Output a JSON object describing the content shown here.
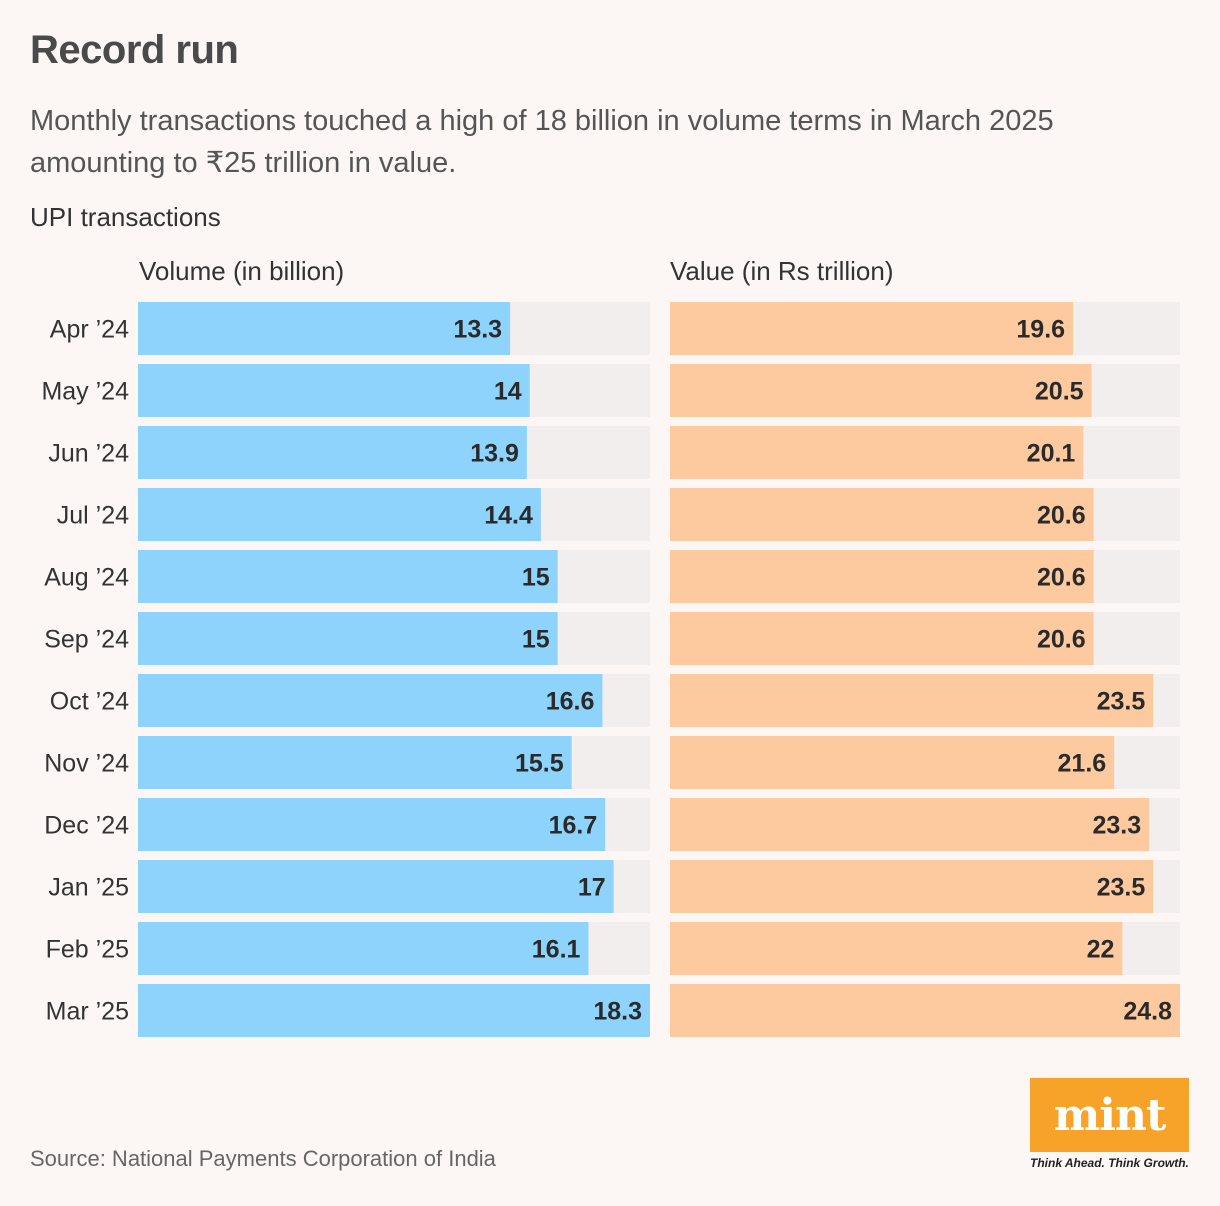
{
  "header": {
    "title": "Record run",
    "subtitle": "Monthly transactions touched a high of 18 billion in volume terms in March 2025 amounting to ₹25 trillion in value.",
    "chart_label": "UPI transactions"
  },
  "footer": {
    "source": "Source: National Payments Corporation of India",
    "logo_text": "mint",
    "tagline": "Think Ahead. Think Growth."
  },
  "colors": {
    "volume_bar": "#8dd3fc",
    "value_bar": "#fdcaa0",
    "track": "#f3eeee",
    "logo": "#f7a228"
  },
  "chart_data": {
    "type": "bar",
    "orientation": "horizontal",
    "title": "UPI transactions",
    "categories": [
      "Apr ’24",
      "May ’24",
      "Jun ’24",
      "Jul ’24",
      "Aug ’24",
      "Sep ’24",
      "Oct ’24",
      "Nov ’24",
      "Dec ’24",
      "Jan ’25",
      "Feb ’25",
      "Mar ’25"
    ],
    "series": [
      {
        "name": "Volume (in billion)",
        "values": [
          13.3,
          14,
          13.9,
          14.4,
          15,
          15,
          16.6,
          15.5,
          16.7,
          17,
          16.1,
          18.3
        ],
        "max": 18.3
      },
      {
        "name": "Value (in Rs trillion)",
        "values": [
          19.6,
          20.5,
          20.1,
          20.6,
          20.6,
          20.6,
          23.5,
          21.6,
          23.3,
          23.5,
          22,
          24.8
        ],
        "max": 24.8
      }
    ]
  }
}
